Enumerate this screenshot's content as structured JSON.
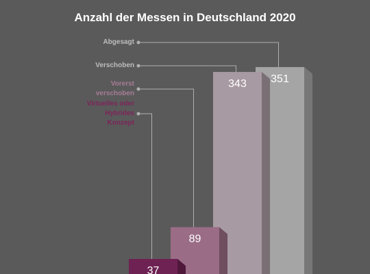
{
  "chart_data": {
    "type": "bar",
    "title": "Anzahl der Messen in Deutschland 2020",
    "categories": [
      "Virtuelles oder Hybrides Konzept",
      "Vorerst verschoben",
      "Verschoben",
      "Abgesagt"
    ],
    "values": [
      37,
      89,
      343,
      351
    ],
    "colors": [
      "#6e2253",
      "#9a6c86",
      "#a89aa2",
      "#a5a5a5"
    ],
    "label_colors": [
      "#7d2459",
      "#a77c95",
      "#bdbdbd",
      "#bdbdbd"
    ]
  }
}
